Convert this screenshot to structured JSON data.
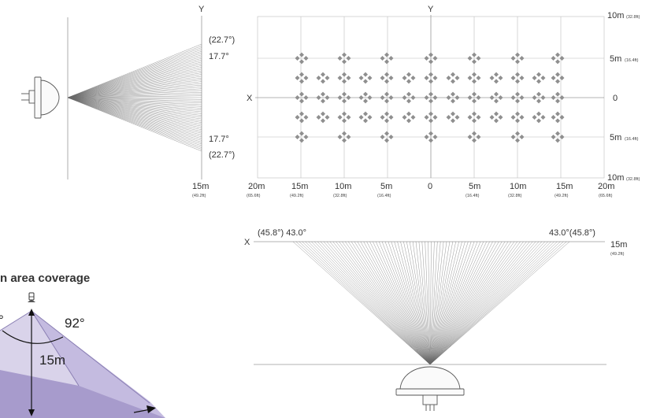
{
  "side_view": {
    "y_label": "Y",
    "outer_angle_top": "(22.7°)",
    "inner_angle_top": "17.7°",
    "inner_angle_bottom": "17.7°",
    "outer_angle_bottom": "(22.7°)",
    "range_m": "15m",
    "range_ft": "(49.2ft)"
  },
  "coverage_grid": {
    "y_label": "Y",
    "x_label": "X",
    "right_labels": [
      {
        "m": "10m",
        "ft": "(32.8ft)"
      },
      {
        "m": "5m",
        "ft": "(16.4ft)"
      },
      {
        "m": "0",
        "ft": ""
      },
      {
        "m": "5m",
        "ft": "(16.4ft)"
      },
      {
        "m": "10m",
        "ft": "(32.8ft)"
      }
    ],
    "bottom_labels": [
      {
        "m": "20m",
        "ft": "(65.6ft)"
      },
      {
        "m": "15m",
        "ft": "(49.2ft)"
      },
      {
        "m": "10m",
        "ft": "(32.8ft)"
      },
      {
        "m": "5m",
        "ft": "(16.4ft)"
      },
      {
        "m": "0",
        "ft": ""
      },
      {
        "m": "5m",
        "ft": "(16.4ft)"
      },
      {
        "m": "10m",
        "ft": "(32.8ft)"
      },
      {
        "m": "15m",
        "ft": "(49.2ft)"
      },
      {
        "m": "20m",
        "ft": "(65.6ft)"
      }
    ]
  },
  "top_view": {
    "x_label": "X",
    "left_angle": "(45.8°) 43.0°",
    "right_angle": "43.0°(45.8°)",
    "range_m": "15m",
    "range_ft": "(49.2ft)"
  },
  "perspective": {
    "title": "n area coverage",
    "angle_left": "°",
    "angle_right": "92°",
    "height": "15m",
    "colors": {
      "light": "#d9d3ea",
      "mid": "#c4bbe0",
      "dark": "#a79bcc",
      "line": "#8a7fb3"
    }
  }
}
